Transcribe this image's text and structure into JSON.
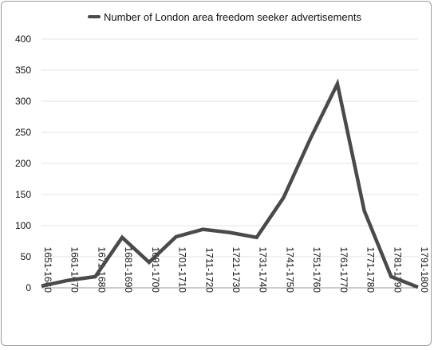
{
  "chart_data": {
    "type": "line",
    "categories": [
      "1651-1660",
      "1661-1670",
      "1671-1680",
      "1681-1690",
      "1691-1700",
      "1701-1710",
      "1711-1720",
      "1721-1730",
      "1731-1740",
      "1741-1750",
      "1751-1760",
      "1761-1770",
      "1771-1780",
      "1781-1790",
      "1791-1800"
    ],
    "series": [
      {
        "name": "Number of London area freedom seeker advertisements",
        "values": [
          3,
          12,
          18,
          81,
          41,
          82,
          94,
          89,
          81,
          145,
          240,
          328,
          124,
          18,
          1
        ],
        "color": "#4a494e"
      }
    ],
    "title": "",
    "xlabel": "",
    "ylabel": "",
    "ylim": [
      0,
      400
    ],
    "yticks": [
      "0",
      "50",
      "100",
      "150",
      "200",
      "250",
      "300",
      "350",
      "400"
    ],
    "grid": "horizontal",
    "legend": "top"
  }
}
